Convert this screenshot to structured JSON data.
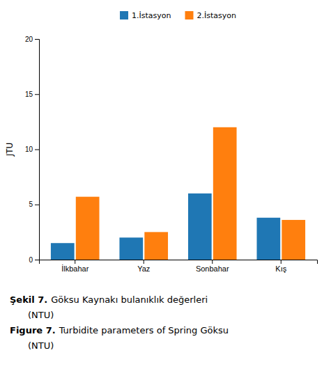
{
  "chart_data": {
    "type": "bar",
    "categories": [
      "İlkbahar",
      "Yaz",
      "Sonbahar",
      "Kış"
    ],
    "series": [
      {
        "name": "1.İstasyon",
        "values": [
          1.5,
          2.0,
          6.0,
          3.8
        ]
      },
      {
        "name": "2.İstasyon",
        "values": [
          5.7,
          2.5,
          12.0,
          3.6
        ]
      }
    ],
    "y_label": "JTU",
    "ylim": [
      0,
      20
    ],
    "yticks": [
      0,
      5,
      10,
      15,
      20
    ],
    "legend": "top",
    "grid": false,
    "annotations": [
      "Şekil 7.",
      "Göksu Kaynakı bulanıklık değerleri",
      "(NTU)",
      "Figure 7.",
      "Turbidite parameters of Spring Göksu",
      "(NTU)"
    ]
  }
}
